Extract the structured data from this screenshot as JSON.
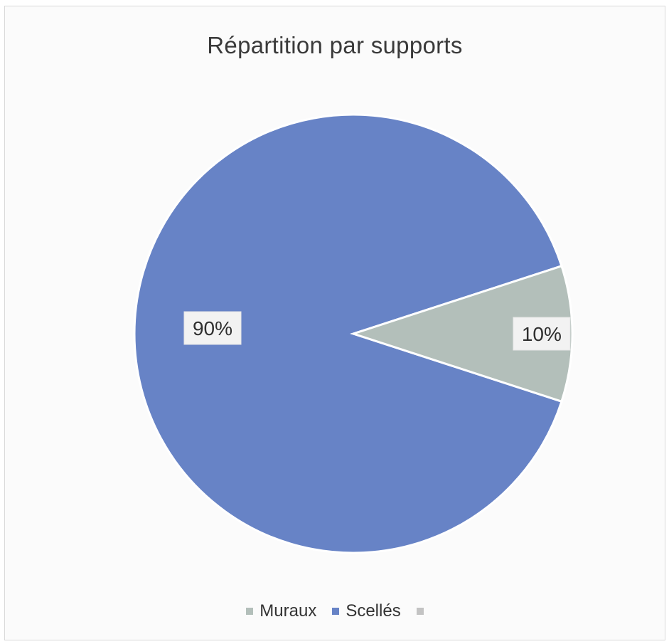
{
  "chart_data": {
    "type": "pie",
    "title": "Répartition par supports",
    "slices": [
      {
        "name": "Scellés",
        "value": 90,
        "label": "90%",
        "color": "#6783c6"
      },
      {
        "name": "Muraux",
        "value": 10,
        "label": "10%",
        "color": "#b3bfba"
      }
    ],
    "legend": {
      "placement": "bottom",
      "entries": [
        {
          "label": "Muraux",
          "color": "#b3bfba"
        },
        {
          "label": "Scellés",
          "color": "#6783c6"
        },
        {
          "label": "",
          "color": "#c3c3c3"
        }
      ]
    }
  }
}
